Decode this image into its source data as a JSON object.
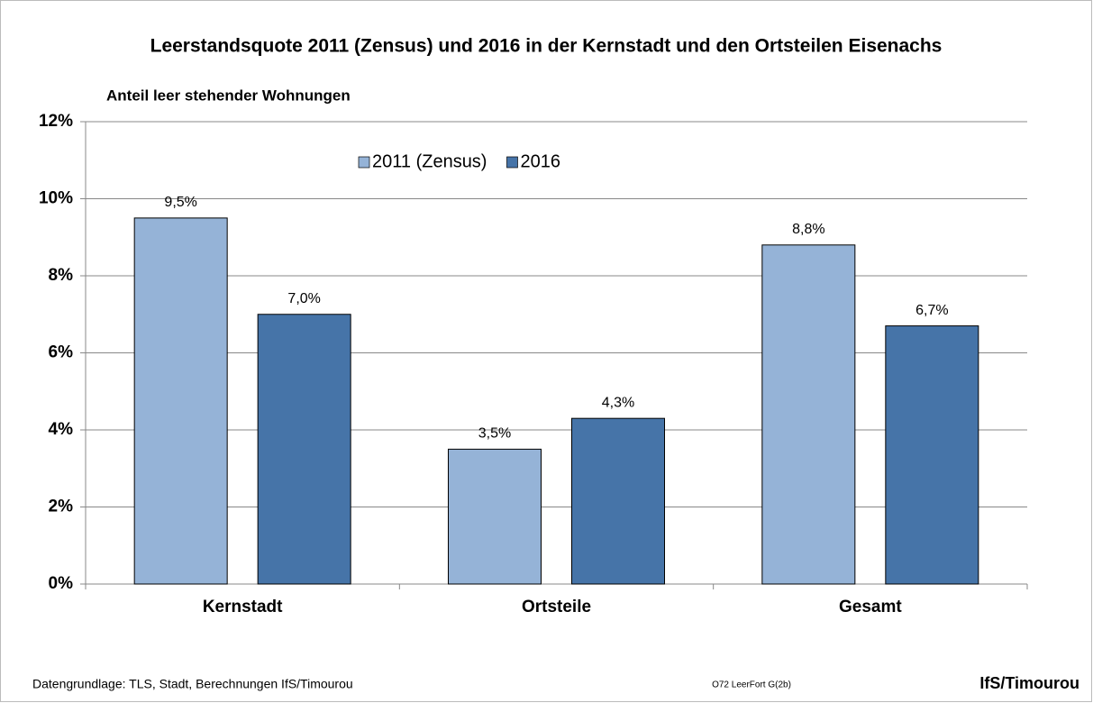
{
  "chart_data": {
    "type": "bar",
    "title": "Leerstandsquote 2011 (Zensus) und 2016 in der Kernstadt und den Ortsteilen Eisenachs",
    "y_label": "Anteil leer stehender Wohnungen",
    "categories": [
      "Kernstadt",
      "Ortsteile",
      "Gesamt"
    ],
    "series": [
      {
        "name": "2011 (Zensus)",
        "color": "#95b3d7",
        "values": [
          9.5,
          3.5,
          8.8
        ],
        "value_labels": [
          "9,5%",
          "3,5%",
          "8,8%"
        ]
      },
      {
        "name": "2016",
        "color": "#4674a8",
        "values": [
          7.0,
          4.3,
          6.7
        ],
        "value_labels": [
          "7,0%",
          "4,3%",
          "6,7%"
        ]
      }
    ],
    "ylim": [
      0,
      12
    ],
    "yticks": [
      {
        "value": 0,
        "label": "0%"
      },
      {
        "value": 2,
        "label": "2%"
      },
      {
        "value": 4,
        "label": "4%"
      },
      {
        "value": 6,
        "label": "6%"
      },
      {
        "value": 8,
        "label": "8%"
      },
      {
        "value": 10,
        "label": "10%"
      },
      {
        "value": 12,
        "label": "12%"
      }
    ],
    "grid": true,
    "legend": "top",
    "source": "Datengrundlage: TLS, Stadt, Berechnungen IfS/Timourou",
    "code": "O72 LeerFort G(2b)",
    "brand": "IfS/Timourou"
  }
}
